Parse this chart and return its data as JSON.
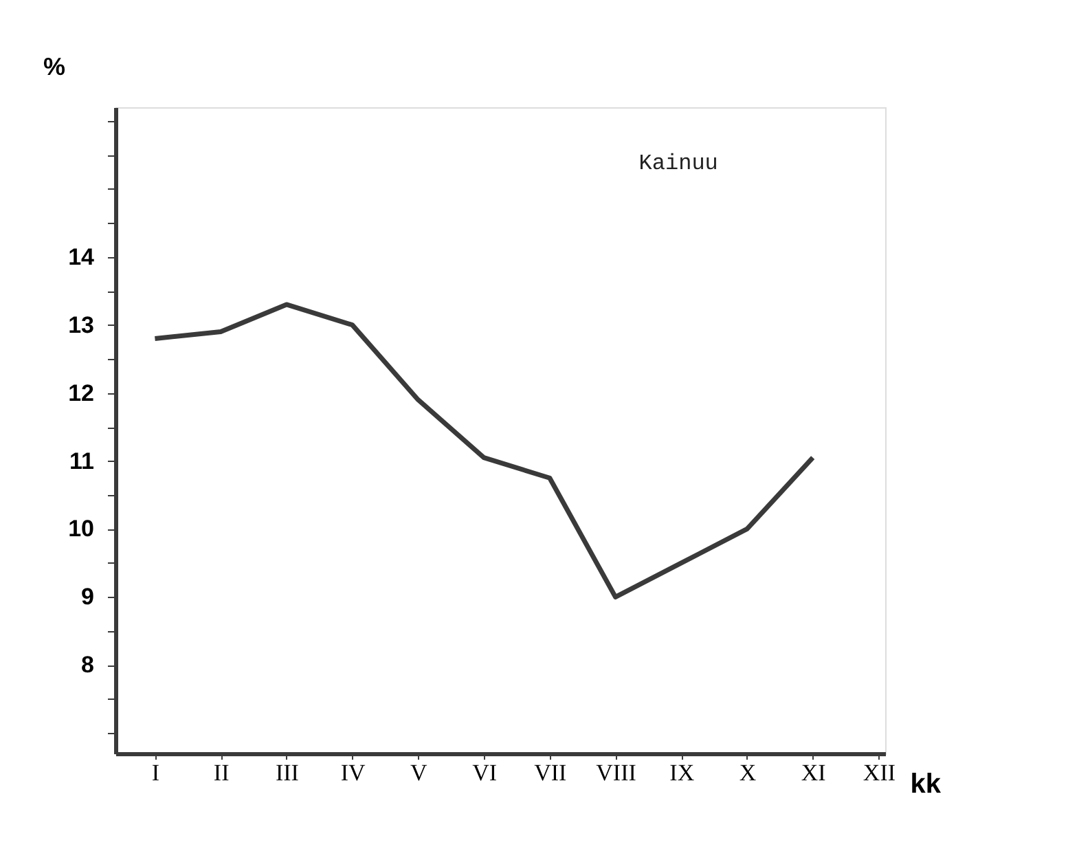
{
  "chart_data": {
    "type": "line",
    "categories": [
      "I",
      "II",
      "III",
      "IV",
      "V",
      "VI",
      "VII",
      "VIII",
      "IX",
      "X",
      "XI",
      "XII"
    ],
    "values": [
      12.8,
      12.9,
      13.3,
      13.0,
      11.9,
      11.05,
      10.75,
      9.0,
      9.5,
      10.0,
      11.05,
      null
    ],
    "color": "#3a3a3a",
    "ylabel": "%",
    "xlabel": "kk",
    "annotations": [
      "Kainuu"
    ],
    "ylim": [
      6.7,
      16.2
    ],
    "yticks": [
      {
        "value": 7,
        "label": null
      },
      {
        "value": 7.5,
        "label": null
      },
      8,
      {
        "value": 8.5,
        "label": null
      },
      9,
      {
        "value": 9.5,
        "label": null
      },
      10,
      {
        "value": 10.5,
        "label": null
      },
      11,
      {
        "value": 11.5,
        "label": null
      },
      12,
      {
        "value": 12.5,
        "label": null
      },
      13,
      {
        "value": 13.5,
        "label": null
      },
      14,
      {
        "value": 14.5,
        "label": null
      },
      {
        "value": 15,
        "label": null
      },
      {
        "value": 15.5,
        "label": null
      },
      {
        "value": 16,
        "label": null
      }
    ],
    "grid": false,
    "marker": "none",
    "line_style": "solid"
  }
}
